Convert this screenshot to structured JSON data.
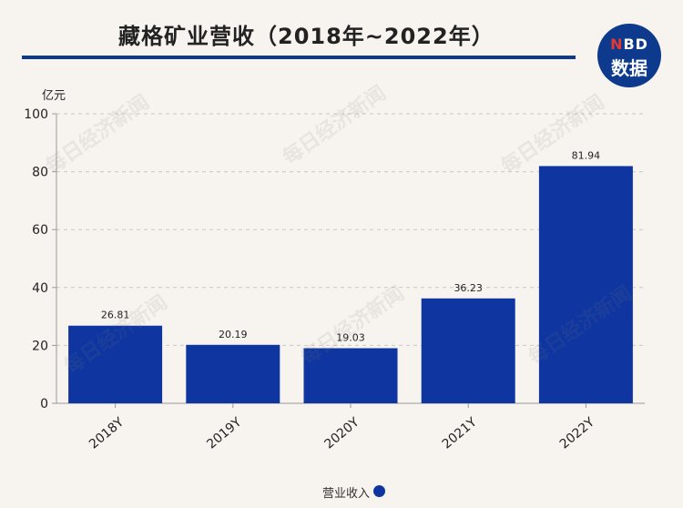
{
  "title": "藏格矿业营收（2018年~2022年）",
  "logo": {
    "part1": "N",
    "part2": "BD",
    "line2": "数据"
  },
  "watermark": "每日经济新闻",
  "colors": {
    "bar": "#0f36a0",
    "accent": "#0d3a8c",
    "grid": "#c8c8c8"
  },
  "chart_data": {
    "type": "bar",
    "title": "藏格矿业营收（2018年~2022年）",
    "unit_label": "亿元",
    "categories": [
      "2018Y",
      "2019Y",
      "2020Y",
      "2021Y",
      "2022Y"
    ],
    "series": [
      {
        "name": "营业收入",
        "values": [
          26.81,
          20.19,
          19.03,
          36.23,
          81.94
        ],
        "labels": [
          "26.81",
          "20.19",
          "19.03",
          "36.23",
          "81.94"
        ]
      }
    ],
    "ylim": [
      0,
      100
    ],
    "yticks": [
      0,
      20,
      40,
      60,
      80,
      100
    ],
    "grid": true,
    "legend_position": "bottom"
  }
}
